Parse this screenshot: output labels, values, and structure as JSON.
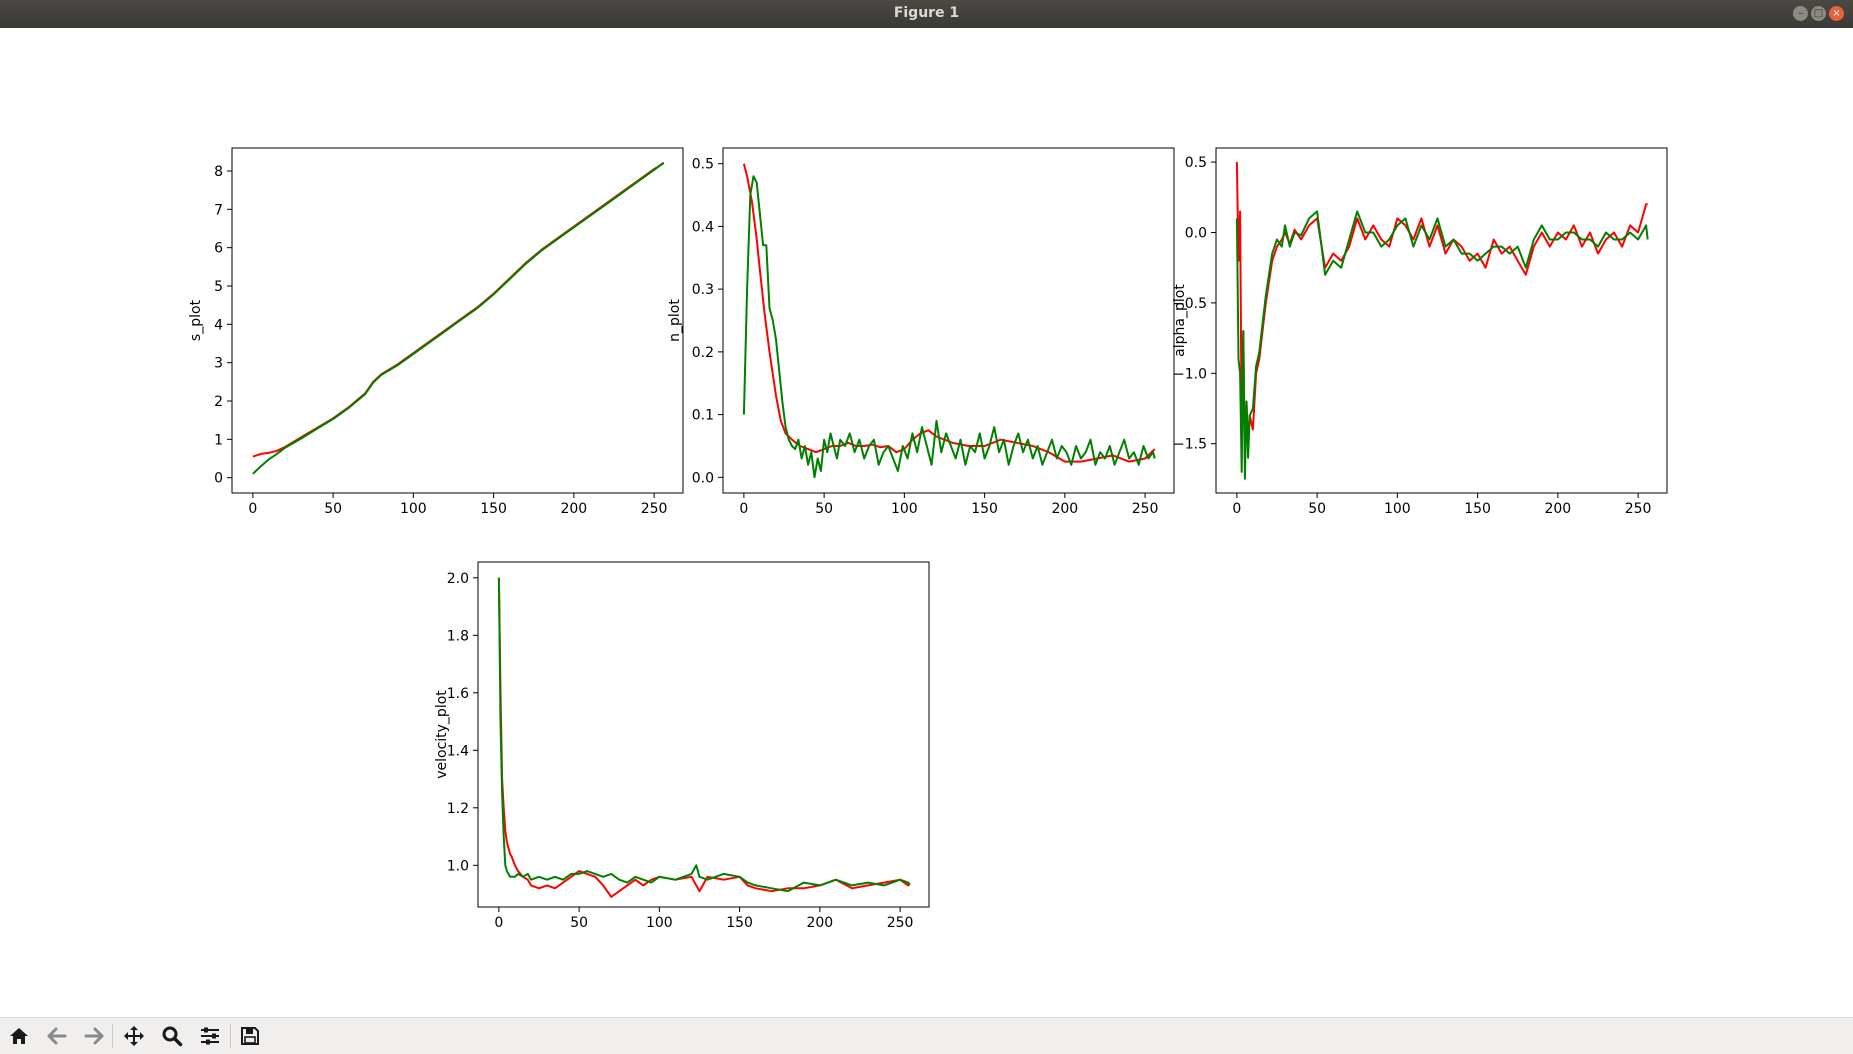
{
  "window": {
    "title": "Figure 1",
    "controls": {
      "minimize": "–",
      "maximize": "□",
      "close": "×"
    }
  },
  "toolbar": {
    "buttons": [
      {
        "name": "home-button",
        "icon": "home-icon"
      },
      {
        "name": "back-button",
        "icon": "arrow-left-icon"
      },
      {
        "name": "forward-button",
        "icon": "arrow-right-icon"
      },
      {
        "name": "pan-button",
        "icon": "move-icon"
      },
      {
        "name": "zoom-button",
        "icon": "magnifier-icon"
      },
      {
        "name": "configure-subplots-button",
        "icon": "sliders-icon"
      },
      {
        "name": "save-button",
        "icon": "floppy-icon"
      }
    ]
  },
  "colors": {
    "series_a": "#ff0000",
    "series_b": "#008000",
    "frame": "#000000"
  },
  "chart_data": [
    {
      "type": "line",
      "ylabel": "s_plot",
      "xlim": [
        -13,
        268
      ],
      "ylim": [
        -0.4,
        8.6
      ],
      "xticks": [
        0,
        50,
        100,
        150,
        200,
        250
      ],
      "yticks": [
        0,
        1,
        2,
        3,
        4,
        5,
        6,
        7,
        8
      ],
      "series": [
        {
          "color": "#ff0000",
          "x": [
            0,
            5,
            10,
            15,
            20,
            30,
            40,
            50,
            60,
            70,
            75,
            80,
            90,
            100,
            110,
            120,
            130,
            140,
            150,
            160,
            170,
            180,
            190,
            200,
            210,
            220,
            230,
            240,
            250,
            256
          ],
          "y": [
            0.55,
            0.62,
            0.65,
            0.7,
            0.8,
            1.05,
            1.3,
            1.55,
            1.85,
            2.2,
            2.5,
            2.7,
            2.95,
            3.25,
            3.55,
            3.85,
            4.15,
            4.45,
            4.8,
            5.2,
            5.6,
            5.95,
            6.25,
            6.55,
            6.85,
            7.15,
            7.45,
            7.75,
            8.05,
            8.2
          ]
        },
        {
          "color": "#008000",
          "x": [
            0,
            5,
            10,
            15,
            20,
            30,
            40,
            50,
            60,
            70,
            75,
            80,
            90,
            100,
            110,
            120,
            130,
            140,
            150,
            160,
            170,
            180,
            190,
            200,
            210,
            220,
            230,
            240,
            250,
            256
          ],
          "y": [
            0.1,
            0.3,
            0.48,
            0.62,
            0.78,
            1.02,
            1.28,
            1.53,
            1.83,
            2.18,
            2.48,
            2.68,
            2.93,
            3.23,
            3.53,
            3.83,
            4.13,
            4.43,
            4.78,
            5.18,
            5.58,
            5.93,
            6.23,
            6.53,
            6.83,
            7.13,
            7.43,
            7.73,
            8.03,
            8.22
          ]
        }
      ]
    },
    {
      "type": "line",
      "ylabel": "n_plot",
      "xlim": [
        -13,
        268
      ],
      "ylim": [
        -0.025,
        0.525
      ],
      "xticks": [
        0,
        50,
        100,
        150,
        200,
        250
      ],
      "yticks": [
        0.0,
        0.1,
        0.2,
        0.3,
        0.4,
        0.5
      ],
      "ytick_labels": [
        "0.0",
        "0.1",
        "0.2",
        "0.3",
        "0.4",
        "0.5"
      ],
      "series": [
        {
          "color": "#ff0000",
          "x": [
            0,
            2,
            5,
            8,
            10,
            13,
            16,
            20,
            23,
            26,
            30,
            35,
            40,
            45,
            50,
            55,
            60,
            65,
            70,
            75,
            80,
            85,
            90,
            95,
            100,
            105,
            110,
            115,
            120,
            130,
            140,
            150,
            160,
            170,
            180,
            190,
            200,
            210,
            220,
            230,
            240,
            250,
            256
          ],
          "y": [
            0.5,
            0.48,
            0.44,
            0.38,
            0.33,
            0.26,
            0.2,
            0.13,
            0.09,
            0.07,
            0.06,
            0.05,
            0.045,
            0.04,
            0.045,
            0.05,
            0.05,
            0.055,
            0.05,
            0.05,
            0.052,
            0.048,
            0.05,
            0.04,
            0.045,
            0.06,
            0.07,
            0.075,
            0.065,
            0.055,
            0.05,
            0.05,
            0.06,
            0.055,
            0.05,
            0.04,
            0.025,
            0.025,
            0.03,
            0.035,
            0.025,
            0.03,
            0.045
          ]
        },
        {
          "color": "#008000",
          "x": [
            0,
            2,
            4,
            6,
            8,
            10,
            12,
            14,
            16,
            18,
            20,
            22,
            24,
            26,
            28,
            30,
            32,
            34,
            36,
            38,
            40,
            42,
            44,
            46,
            48,
            50,
            52,
            54,
            56,
            58,
            60,
            63,
            66,
            69,
            72,
            75,
            78,
            81,
            84,
            87,
            90,
            93,
            96,
            99,
            102,
            105,
            108,
            111,
            114,
            117,
            120,
            123,
            126,
            129,
            132,
            135,
            138,
            141,
            144,
            147,
            150,
            153,
            156,
            159,
            162,
            165,
            168,
            171,
            174,
            177,
            180,
            183,
            186,
            189,
            192,
            195,
            198,
            201,
            204,
            207,
            210,
            213,
            216,
            219,
            222,
            225,
            228,
            231,
            234,
            237,
            240,
            243,
            246,
            249,
            252,
            255,
            256
          ],
          "y": [
            0.1,
            0.3,
            0.45,
            0.48,
            0.47,
            0.42,
            0.37,
            0.37,
            0.27,
            0.25,
            0.22,
            0.17,
            0.12,
            0.08,
            0.06,
            0.05,
            0.045,
            0.06,
            0.03,
            0.05,
            0.02,
            0.04,
            0.0,
            0.03,
            0.01,
            0.06,
            0.04,
            0.07,
            0.05,
            0.03,
            0.06,
            0.05,
            0.07,
            0.04,
            0.06,
            0.03,
            0.05,
            0.06,
            0.02,
            0.04,
            0.05,
            0.03,
            0.01,
            0.05,
            0.03,
            0.07,
            0.04,
            0.08,
            0.05,
            0.02,
            0.09,
            0.04,
            0.07,
            0.05,
            0.03,
            0.06,
            0.02,
            0.05,
            0.04,
            0.07,
            0.03,
            0.05,
            0.08,
            0.04,
            0.06,
            0.02,
            0.05,
            0.07,
            0.04,
            0.06,
            0.03,
            0.05,
            0.02,
            0.04,
            0.06,
            0.03,
            0.05,
            0.04,
            0.02,
            0.05,
            0.03,
            0.04,
            0.06,
            0.02,
            0.04,
            0.03,
            0.05,
            0.02,
            0.04,
            0.06,
            0.03,
            0.04,
            0.02,
            0.05,
            0.03,
            0.04,
            0.03
          ]
        }
      ]
    },
    {
      "type": "line",
      "ylabel": "alpha_plot",
      "xlim": [
        -13,
        268
      ],
      "ylim": [
        -1.85,
        0.6
      ],
      "xticks": [
        0,
        50,
        100,
        150,
        200,
        250
      ],
      "yticks": [
        0.5,
        0.0,
        -0.5,
        -1.0,
        -1.5
      ],
      "ytick_labels": [
        "0.5",
        "0.0",
        "−0.5",
        "−1.0",
        "−1.5"
      ],
      "series": [
        {
          "color": "#ff0000",
          "x": [
            0,
            1,
            2,
            3,
            4,
            5,
            6,
            7,
            8,
            10,
            12,
            14,
            16,
            18,
            20,
            22,
            25,
            28,
            30,
            33,
            36,
            40,
            45,
            50,
            55,
            60,
            65,
            70,
            75,
            80,
            85,
            90,
            95,
            100,
            105,
            110,
            115,
            120,
            125,
            130,
            135,
            140,
            145,
            150,
            155,
            160,
            165,
            170,
            175,
            180,
            185,
            190,
            195,
            200,
            205,
            210,
            215,
            220,
            225,
            230,
            235,
            240,
            245,
            250,
            255,
            256
          ],
          "y": [
            0.5,
            -0.2,
            0.15,
            -1.4,
            -0.7,
            -1.6,
            -1.2,
            -1.5,
            -1.3,
            -1.4,
            -1.0,
            -0.9,
            -0.7,
            -0.5,
            -0.35,
            -0.2,
            -0.1,
            -0.05,
            0.0,
            -0.08,
            0.02,
            -0.05,
            0.05,
            0.1,
            -0.25,
            -0.15,
            -0.2,
            -0.1,
            0.1,
            -0.05,
            0.05,
            -0.05,
            -0.1,
            0.1,
            0.05,
            -0.05,
            0.1,
            -0.1,
            0.05,
            -0.15,
            -0.05,
            -0.1,
            -0.2,
            -0.15,
            -0.25,
            -0.05,
            -0.15,
            -0.1,
            -0.2,
            -0.3,
            -0.1,
            0.0,
            -0.1,
            0.0,
            -0.05,
            0.05,
            -0.1,
            0.0,
            -0.15,
            -0.05,
            0.0,
            -0.1,
            0.05,
            0.0,
            0.2,
            0.2
          ]
        },
        {
          "color": "#008000",
          "x": [
            0,
            1,
            2,
            3,
            4,
            5,
            6,
            7,
            8,
            10,
            12,
            14,
            16,
            18,
            20,
            22,
            25,
            28,
            30,
            33,
            36,
            40,
            45,
            50,
            55,
            60,
            65,
            70,
            75,
            80,
            85,
            90,
            95,
            100,
            105,
            110,
            115,
            120,
            125,
            130,
            135,
            140,
            145,
            150,
            155,
            160,
            165,
            170,
            175,
            180,
            185,
            190,
            195,
            200,
            205,
            210,
            215,
            220,
            225,
            230,
            235,
            240,
            245,
            250,
            255,
            256
          ],
          "y": [
            0.1,
            -0.9,
            -1.0,
            -1.7,
            -0.7,
            -1.75,
            -1.2,
            -1.6,
            -1.3,
            -1.25,
            -0.95,
            -0.85,
            -0.65,
            -0.45,
            -0.3,
            -0.15,
            -0.05,
            -0.1,
            0.05,
            -0.1,
            0.0,
            -0.02,
            0.1,
            0.15,
            -0.3,
            -0.2,
            -0.25,
            -0.05,
            0.15,
            0.0,
            0.0,
            -0.1,
            -0.05,
            0.05,
            0.1,
            -0.1,
            0.05,
            -0.05,
            0.1,
            -0.1,
            -0.05,
            -0.15,
            -0.15,
            -0.2,
            -0.15,
            -0.1,
            -0.1,
            -0.15,
            -0.1,
            -0.25,
            -0.05,
            0.05,
            -0.05,
            -0.05,
            0.0,
            0.0,
            -0.05,
            -0.05,
            -0.1,
            0.0,
            -0.05,
            -0.05,
            0.0,
            -0.05,
            0.05,
            -0.05
          ]
        }
      ]
    },
    {
      "type": "line",
      "ylabel": "velocity_plot",
      "xlim": [
        -13,
        268
      ],
      "ylim": [
        0.855,
        2.055
      ],
      "xticks": [
        0,
        50,
        100,
        150,
        200,
        250
      ],
      "yticks": [
        1.0,
        1.2,
        1.4,
        1.6,
        1.8,
        2.0
      ],
      "ytick_labels": [
        "1.0",
        "1.2",
        "1.4",
        "1.6",
        "1.8",
        "2.0"
      ],
      "series": [
        {
          "color": "#ff0000",
          "x": [
            0,
            1,
            2,
            3,
            4,
            5,
            6,
            7,
            8,
            10,
            12,
            15,
            18,
            20,
            25,
            30,
            35,
            40,
            45,
            50,
            55,
            60,
            65,
            70,
            75,
            80,
            85,
            90,
            95,
            100,
            110,
            120,
            125,
            130,
            140,
            150,
            155,
            160,
            170,
            180,
            190,
            200,
            210,
            220,
            230,
            240,
            250,
            255,
            256
          ],
          "y": [
            2.0,
            1.6,
            1.3,
            1.2,
            1.12,
            1.08,
            1.06,
            1.04,
            1.03,
            1.0,
            0.98,
            0.96,
            0.95,
            0.93,
            0.92,
            0.93,
            0.92,
            0.94,
            0.96,
            0.98,
            0.97,
            0.96,
            0.93,
            0.89,
            0.91,
            0.93,
            0.95,
            0.93,
            0.95,
            0.96,
            0.95,
            0.96,
            0.91,
            0.96,
            0.95,
            0.96,
            0.93,
            0.92,
            0.91,
            0.92,
            0.92,
            0.93,
            0.95,
            0.92,
            0.93,
            0.94,
            0.95,
            0.93,
            0.94
          ]
        },
        {
          "color": "#008000",
          "x": [
            0,
            1,
            2,
            3,
            4,
            5,
            6,
            7,
            8,
            10,
            12,
            15,
            18,
            20,
            25,
            30,
            35,
            40,
            45,
            50,
            55,
            60,
            65,
            70,
            75,
            80,
            85,
            90,
            95,
            100,
            110,
            120,
            123,
            125,
            130,
            140,
            150,
            155,
            160,
            170,
            180,
            190,
            200,
            210,
            220,
            230,
            240,
            250,
            255,
            256
          ],
          "y": [
            2.0,
            1.5,
            1.25,
            1.1,
            1.0,
            0.98,
            0.97,
            0.96,
            0.96,
            0.96,
            0.97,
            0.96,
            0.97,
            0.95,
            0.96,
            0.95,
            0.96,
            0.95,
            0.97,
            0.97,
            0.98,
            0.97,
            0.96,
            0.97,
            0.95,
            0.94,
            0.96,
            0.95,
            0.94,
            0.96,
            0.95,
            0.97,
            1.0,
            0.96,
            0.95,
            0.97,
            0.96,
            0.94,
            0.93,
            0.92,
            0.91,
            0.94,
            0.93,
            0.95,
            0.93,
            0.94,
            0.93,
            0.95,
            0.94,
            0.93
          ]
        }
      ]
    }
  ]
}
